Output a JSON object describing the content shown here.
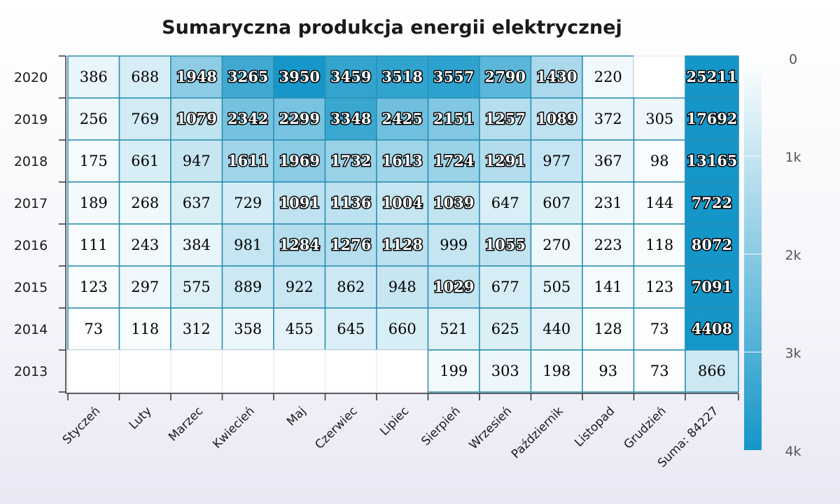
{
  "chart_data": {
    "type": "heatmap",
    "title": "Sumaryczna produkcja energii elektrycznej",
    "x_categories": [
      "Styczeń",
      "Luty",
      "Marzec",
      "Kwiecień",
      "Maj",
      "Czerwiec",
      "Lipiec",
      "Sierpień",
      "Wrzesień",
      "Październik",
      "Listopad",
      "Grudzień",
      "Suma: 84227"
    ],
    "y_categories": [
      "2020",
      "2019",
      "2018",
      "2017",
      "2016",
      "2015",
      "2014",
      "2013"
    ],
    "rows": [
      {
        "year": "2020",
        "values": [
          386,
          688,
          1948,
          3265,
          3950,
          3459,
          3518,
          3557,
          2790,
          1430,
          220,
          null,
          25211
        ]
      },
      {
        "year": "2019",
        "values": [
          256,
          769,
          1079,
          2342,
          2299,
          3348,
          2425,
          2151,
          1257,
          1089,
          372,
          305,
          17692
        ]
      },
      {
        "year": "2018",
        "values": [
          175,
          661,
          947,
          1611,
          1969,
          1732,
          1613,
          1724,
          1291,
          977,
          367,
          98,
          13165
        ]
      },
      {
        "year": "2017",
        "values": [
          189,
          268,
          637,
          729,
          1091,
          1136,
          1004,
          1039,
          647,
          607,
          231,
          144,
          7722
        ]
      },
      {
        "year": "2016",
        "values": [
          111,
          243,
          384,
          981,
          1284,
          1276,
          1128,
          999,
          1055,
          270,
          223,
          118,
          8072
        ]
      },
      {
        "year": "2015",
        "values": [
          123,
          297,
          575,
          889,
          922,
          862,
          948,
          1029,
          677,
          505,
          141,
          123,
          7091
        ]
      },
      {
        "year": "2014",
        "values": [
          73,
          118,
          312,
          358,
          455,
          645,
          660,
          521,
          625,
          440,
          128,
          73,
          4408
        ]
      },
      {
        "year": "2013",
        "values": [
          null,
          null,
          null,
          null,
          null,
          null,
          null,
          199,
          303,
          198,
          93,
          73,
          866
        ]
      }
    ],
    "color_axis": {
      "min": 0,
      "max": 4000,
      "tick_values": [
        0,
        1000,
        2000,
        3000,
        4000
      ],
      "tick_labels": [
        "0",
        "1k",
        "2k",
        "3k",
        "4k"
      ],
      "min_color": "#ffffff",
      "max_color": "#1496c8",
      "reversed": true,
      "placement": "right"
    },
    "colors": {
      "cell_border": "#2b8fb3",
      "axis_line": "#333333",
      "text_light": "#ffffff",
      "text_dark": "#000000"
    },
    "legend_placement": "right",
    "grid": true
  }
}
